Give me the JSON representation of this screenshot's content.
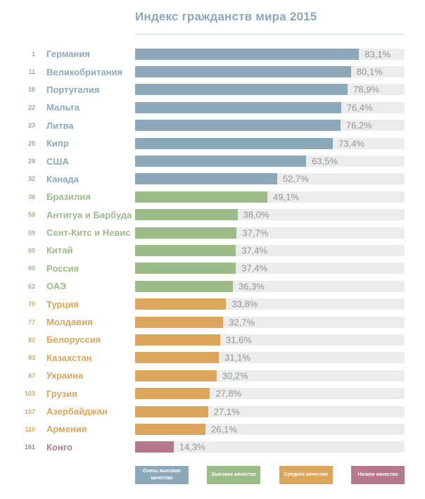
{
  "title": "Индекс гражданств мира 2015",
  "colors": {
    "very_high": "#8CA9BC",
    "high": "#9BBB87",
    "medium": "#DBA55B",
    "low": "#B5788C",
    "track": "#ECECEC",
    "value_text": "#909598",
    "title_text": "#8BA7BD"
  },
  "chart_data": {
    "type": "bar",
    "orientation": "horizontal",
    "title": "Индекс гражданств мира 2015",
    "xlabel": "",
    "ylabel": "",
    "xlim": [
      0,
      100
    ],
    "value_suffix": "%",
    "grid": false,
    "legend_position": "bottom",
    "rows": [
      {
        "rank": "1",
        "country": "Германия",
        "value": 83.1,
        "display": "83,1%",
        "category": "very_high"
      },
      {
        "rank": "11",
        "country": "Великобритания",
        "value": 80.1,
        "display": "80,1%",
        "category": "very_high"
      },
      {
        "rank": "16",
        "country": "Португалия",
        "value": 78.9,
        "display": "78,9%",
        "category": "very_high"
      },
      {
        "rank": "22",
        "country": "Мальта",
        "value": 76.4,
        "display": "76,4%",
        "category": "very_high"
      },
      {
        "rank": "23",
        "country": "Литва",
        "value": 76.2,
        "display": "76,2%",
        "category": "very_high"
      },
      {
        "rank": "25",
        "country": "Кипр",
        "value": 73.4,
        "display": "73,4%",
        "category": "very_high"
      },
      {
        "rank": "28",
        "country": "США",
        "value": 63.5,
        "display": "63,5%",
        "category": "very_high"
      },
      {
        "rank": "32",
        "country": "Канада",
        "value": 52.7,
        "display": "52,7%",
        "category": "very_high"
      },
      {
        "rank": "38",
        "country": "Бразилия",
        "value": 49.1,
        "display": "49,1%",
        "category": "high"
      },
      {
        "rank": "58",
        "country": "Антигуа и Барбуда",
        "value": 38.0,
        "display": "38,0%",
        "category": "high"
      },
      {
        "rank": "59",
        "country": "Сент-Китс и Невис",
        "value": 37.7,
        "display": "37,7%",
        "category": "high"
      },
      {
        "rank": "60",
        "country": "Китай",
        "value": 37.4,
        "display": "37,4%",
        "category": "high"
      },
      {
        "rank": "60",
        "country": "Россия",
        "value": 37.4,
        "display": "37,4%",
        "category": "high"
      },
      {
        "rank": "62",
        "country": "ОАЭ",
        "value": 36.3,
        "display": "36,3%",
        "category": "high"
      },
      {
        "rank": "70",
        "country": "Турция",
        "value": 33.8,
        "display": "33,8%",
        "category": "medium"
      },
      {
        "rank": "77",
        "country": "Молдавия",
        "value": 32.7,
        "display": "32,7%",
        "category": "medium"
      },
      {
        "rank": "82",
        "country": "Белоруссия",
        "value": 31.6,
        "display": "31,6%",
        "category": "medium"
      },
      {
        "rank": "83",
        "country": "Казахстан",
        "value": 31.1,
        "display": "31,1%",
        "category": "medium"
      },
      {
        "rank": "87",
        "country": "Украина",
        "value": 30.2,
        "display": "30,2%",
        "category": "medium"
      },
      {
        "rank": "103",
        "country": "Грузия",
        "value": 27.8,
        "display": "27,8%",
        "category": "medium"
      },
      {
        "rank": "107",
        "country": "Азербайджан",
        "value": 27.1,
        "display": "27,1%",
        "category": "medium"
      },
      {
        "rank": "110",
        "country": "Армения",
        "value": 26.1,
        "display": "26,1%",
        "category": "medium"
      },
      {
        "rank": "161",
        "country": "Конго",
        "value": 14.3,
        "display": "14,3%",
        "category": "low"
      }
    ],
    "legend": [
      {
        "label": "Очень высокое качество",
        "category": "very_high"
      },
      {
        "label": "Высокое качество",
        "category": "high"
      },
      {
        "label": "Среднее качество",
        "category": "medium"
      },
      {
        "label": "Низкое качество",
        "category": "low"
      }
    ]
  }
}
